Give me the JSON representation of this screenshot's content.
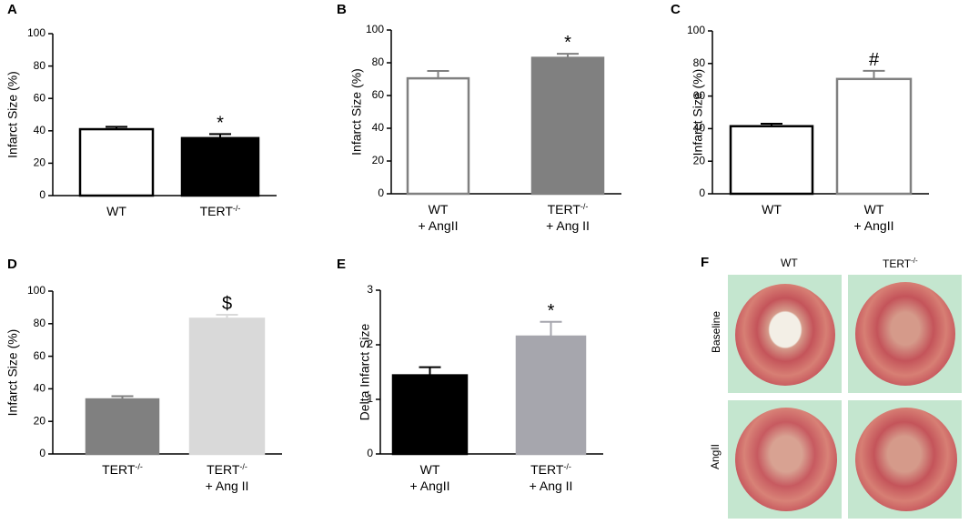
{
  "chart_data": [
    {
      "panel": "A",
      "type": "bar",
      "ylabel": "Infarct Size (%)",
      "ylim": [
        0,
        100
      ],
      "yticks": [
        "0",
        "20",
        "40",
        "60",
        "80",
        "100"
      ],
      "bars": [
        {
          "label": "WT",
          "value": 41,
          "error": 1.5,
          "fill": "#ffffff",
          "stroke": "#000000",
          "sig": ""
        },
        {
          "label": "TERT",
          "sup": "-/-",
          "value": 35.5,
          "error": 2.5,
          "fill": "#000000",
          "stroke": "#000000",
          "sig": "*"
        }
      ]
    },
    {
      "panel": "B",
      "type": "bar",
      "ylabel": "Infarct Size (%)",
      "ylim": [
        0,
        100
      ],
      "yticks": [
        "0",
        "20",
        "40",
        "60",
        "80",
        "100"
      ],
      "bars": [
        {
          "label": "WT",
          "label2": "+ AngII",
          "value": 70.5,
          "error": 4.5,
          "fill": "#ffffff",
          "stroke": "#808080",
          "sig": ""
        },
        {
          "label": "TERT",
          "sup": "-/-",
          "label2": "+ Ang II",
          "value": 83,
          "error": 2.5,
          "fill": "#808080",
          "stroke": "#808080",
          "sig": "*"
        }
      ]
    },
    {
      "panel": "C",
      "type": "bar",
      "ylabel": "Infarct Size (%)",
      "ylim": [
        0,
        100
      ],
      "yticks": [
        "0",
        "20",
        "40",
        "60",
        "80",
        "100"
      ],
      "bars": [
        {
          "label": "WT",
          "value": 41.5,
          "error": 1.5,
          "fill": "#ffffff",
          "stroke": "#000000",
          "sig": ""
        },
        {
          "label": "WT",
          "label2": "+ AngII",
          "value": 70.5,
          "error": 5,
          "fill": "#ffffff",
          "stroke": "#808080",
          "sig": "#"
        }
      ]
    },
    {
      "panel": "D",
      "type": "bar",
      "ylabel": "Infarct Size (%)",
      "ylim": [
        0,
        100
      ],
      "yticks": [
        "0",
        "20",
        "40",
        "60",
        "80",
        "100"
      ],
      "bars": [
        {
          "label": "TERT",
          "sup": "-/-",
          "value": 33.5,
          "error": 2,
          "fill": "#808080",
          "stroke": "#808080",
          "sig": ""
        },
        {
          "label": "TERT",
          "sup": "-/-",
          "label2": "+ Ang II",
          "value": 83,
          "error": 2.5,
          "fill": "#d9d9d9",
          "stroke": "#d9d9d9",
          "sig": "$"
        }
      ]
    },
    {
      "panel": "E",
      "type": "bar",
      "ylabel": "Delta Infarct Size",
      "ylim": [
        0,
        3
      ],
      "yticks": [
        "0",
        "1",
        "2",
        "3"
      ],
      "bars": [
        {
          "label": "WT",
          "label2": "+ AngII",
          "value": 1.44,
          "error": 0.15,
          "fill": "#000000",
          "stroke": "#000000",
          "sig": ""
        },
        {
          "label": "TERT",
          "sup": "-/-",
          "label2": "+ Ang II",
          "value": 2.15,
          "error": 0.27,
          "fill": "#a6a6ad",
          "stroke": "#a6a6ad",
          "sig": "*"
        }
      ]
    }
  ],
  "panel_f": {
    "letter": "F",
    "col_labels": [
      "WT",
      "TERT"
    ],
    "col2_sup": "-/-",
    "row_labels": [
      "Baseline",
      "AngII"
    ]
  }
}
